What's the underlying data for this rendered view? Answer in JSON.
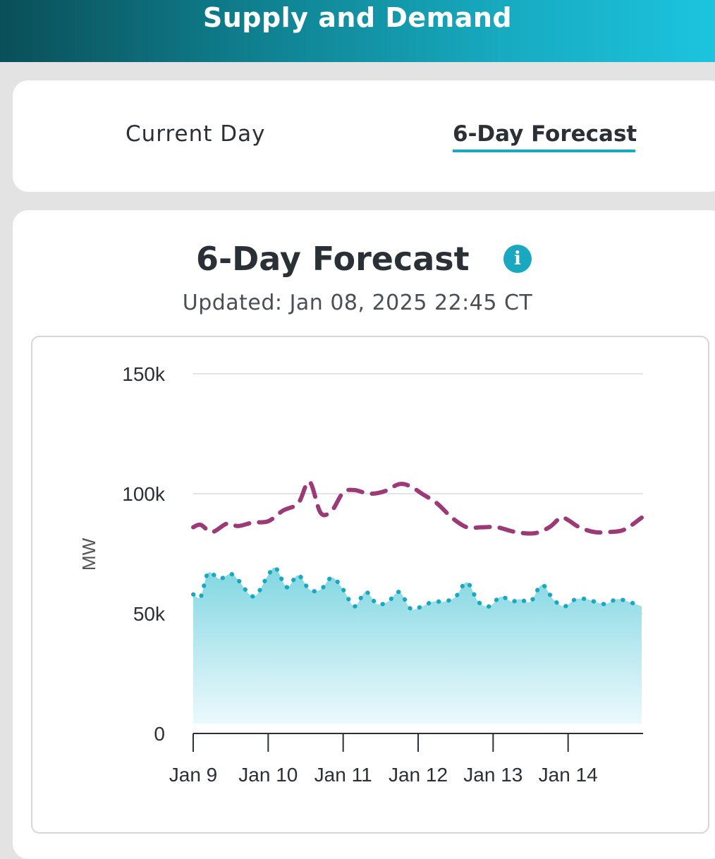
{
  "header": {
    "title": "Supply and Demand"
  },
  "tabs": [
    {
      "label": "Current Day",
      "active": false
    },
    {
      "label": "6-Day Forecast",
      "active": true
    }
  ],
  "colors": {
    "demand": "#9b3a77",
    "supply": "#19a8c0",
    "supply_fill": "#86d9e3",
    "accent": "#1aa9bf"
  },
  "card": {
    "title": "6-Day Forecast",
    "info_icon": "info-icon",
    "updated": "Updated: Jan 08, 2025 22:45 CT"
  },
  "chart_data": {
    "type": "area",
    "xlabel": "",
    "ylabel": "MW",
    "ylim": [
      0,
      150000
    ],
    "yticks": [
      0,
      50000,
      100000,
      150000
    ],
    "ytick_labels": [
      "0",
      "50k",
      "100k",
      "150k"
    ],
    "xtick_labels": [
      "Jan 9",
      "Jan 10",
      "Jan 11",
      "Jan 12",
      "Jan 13",
      "Jan 14"
    ],
    "xrange_days": [
      9,
      15
    ],
    "grid": true,
    "series": [
      {
        "style": "dashed",
        "x": [
          9.0,
          9.1,
          9.25,
          9.45,
          9.6,
          9.8,
          10.0,
          10.2,
          10.4,
          10.55,
          10.7,
          10.85,
          11.0,
          11.15,
          11.35,
          11.55,
          11.75,
          11.9,
          12.05,
          12.25,
          12.45,
          12.65,
          12.85,
          13.05,
          13.3,
          13.55,
          13.75,
          13.9,
          14.0,
          14.15,
          14.35,
          14.55,
          14.75,
          15.0
        ],
        "y": [
          86000,
          87000,
          84000,
          87500,
          86500,
          88000,
          88500,
          93000,
          96000,
          105000,
          92000,
          93000,
          100500,
          101500,
          100000,
          101000,
          104000,
          103000,
          100000,
          96000,
          90000,
          86000,
          86000,
          86000,
          84000,
          83500,
          86000,
          90000,
          89000,
          86000,
          84000,
          84000,
          85000,
          90000
        ]
      },
      {
        "style": "dotted",
        "filled": true,
        "x": [
          9.0,
          9.1,
          9.2,
          9.35,
          9.5,
          9.6,
          9.75,
          9.85,
          10.0,
          10.1,
          10.25,
          10.4,
          10.55,
          10.7,
          10.85,
          11.0,
          11.15,
          11.3,
          11.45,
          11.6,
          11.75,
          11.9,
          12.05,
          12.2,
          12.35,
          12.5,
          12.65,
          12.8,
          12.95,
          13.1,
          13.25,
          13.35,
          13.5,
          13.65,
          13.8,
          13.95,
          14.1,
          14.25,
          14.35,
          14.5,
          14.65,
          14.8,
          15.0
        ],
        "y": [
          58000,
          57000,
          67000,
          64500,
          66500,
          64000,
          58000,
          58000,
          66000,
          69000,
          61000,
          66000,
          60000,
          60000,
          65000,
          60000,
          53000,
          59000,
          54000,
          55000,
          59000,
          52000,
          53000,
          55000,
          55000,
          57000,
          63000,
          55000,
          53000,
          57000,
          55000,
          56000,
          55000,
          62000,
          56000,
          53000,
          56000,
          56000,
          55000,
          54000,
          56000,
          55000,
          53000
        ]
      }
    ]
  }
}
